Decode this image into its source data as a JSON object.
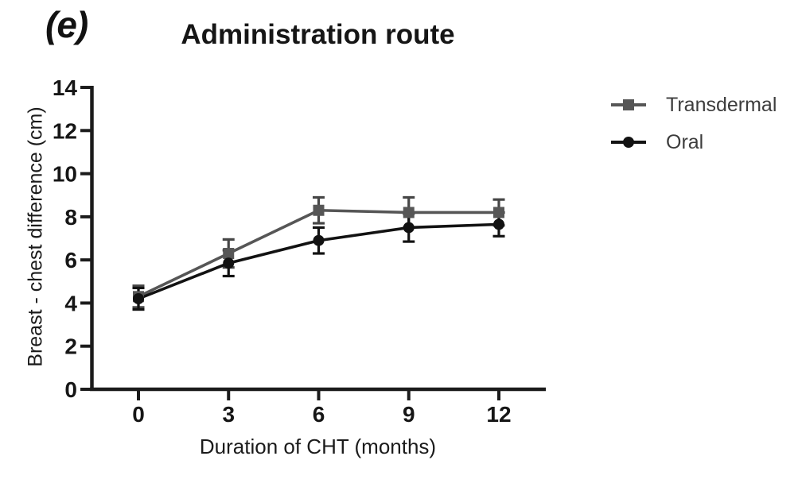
{
  "panel_label": "(e)",
  "chart_data": {
    "type": "line",
    "title": "Administration route",
    "xlabel": "Duration of CHT (months)",
    "ylabel": "Breast - chest difference (cm)",
    "x": [
      0,
      3,
      6,
      9,
      12
    ],
    "xticks": [
      0,
      3,
      6,
      9,
      12
    ],
    "yticks": [
      0,
      2,
      4,
      6,
      8,
      10,
      12,
      14
    ],
    "xlim": [
      0,
      12
    ],
    "ylim": [
      0,
      14
    ],
    "grid": false,
    "legend_position": "right-top",
    "axis_color": "#1b1b1b",
    "series": [
      {
        "name": "Transdermal",
        "marker": "square",
        "color": "#565656",
        "error_color": "#464646",
        "values": [
          4.3,
          6.3,
          8.3,
          8.2,
          8.2
        ],
        "errors": [
          0.5,
          0.65,
          0.6,
          0.7,
          0.6
        ]
      },
      {
        "name": "Oral",
        "marker": "circle",
        "color": "#121212",
        "error_color": "#121212",
        "values": [
          4.2,
          5.85,
          6.9,
          7.5,
          7.65
        ],
        "errors": [
          0.5,
          0.6,
          0.6,
          0.65,
          0.55
        ]
      }
    ]
  }
}
